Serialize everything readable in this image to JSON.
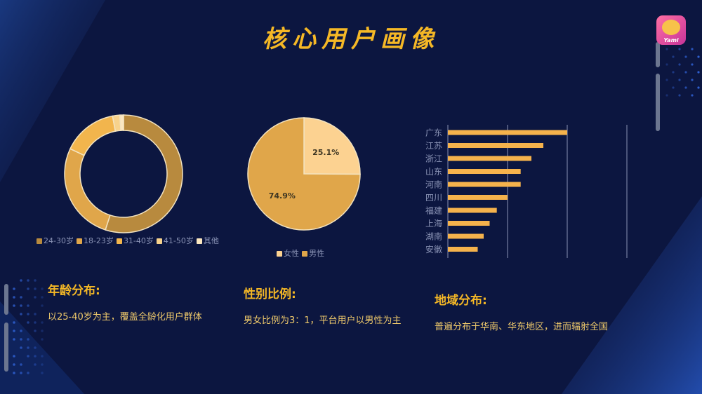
{
  "title": "核心用户画像",
  "logo": {
    "label": "Yami",
    "name": "yami-logo-icon"
  },
  "colors": {
    "bg": "#0c1640",
    "accent": "#f5b826",
    "bar": "#f5b24c"
  },
  "age_section": {
    "title": "年龄分布:",
    "desc": "以25-40岁为主，覆盖全龄化用户群体"
  },
  "gender_section": {
    "title": "性别比例:",
    "desc": "男女比例为3：1，平台用户以男性为主"
  },
  "region_section": {
    "title": "地域分布:",
    "desc": "普遍分布于华南、华东地区，进而辐射全国"
  },
  "chart_data": [
    {
      "type": "pie",
      "variant": "donut",
      "categories": [
        "24-30岁",
        "18-23岁",
        "31-40岁",
        "41-50岁",
        "其他"
      ],
      "values": [
        55,
        27,
        15,
        2,
        1
      ],
      "colors": [
        "#b88a3e",
        "#e0a64a",
        "#f2b54d",
        "#f7d28c",
        "#fbe7c0"
      ],
      "legend_position": "bottom"
    },
    {
      "type": "pie",
      "categories": [
        "女性",
        "男性"
      ],
      "values": [
        25.1,
        74.9
      ],
      "data_labels": [
        "25.1%",
        "74.9%"
      ],
      "colors": [
        "#fcd291",
        "#e0a64a"
      ],
      "legend_position": "bottom"
    },
    {
      "type": "bar",
      "orientation": "horizontal",
      "categories": [
        "广东",
        "江苏",
        "浙江",
        "山东",
        "河南",
        "四川",
        "福建",
        "上海",
        "湖南",
        "安徽"
      ],
      "values": [
        100,
        80,
        70,
        61,
        61,
        50,
        41,
        35,
        30,
        25
      ],
      "xlim": [
        0,
        150
      ],
      "grid": true,
      "color": "#f5b24c"
    }
  ]
}
